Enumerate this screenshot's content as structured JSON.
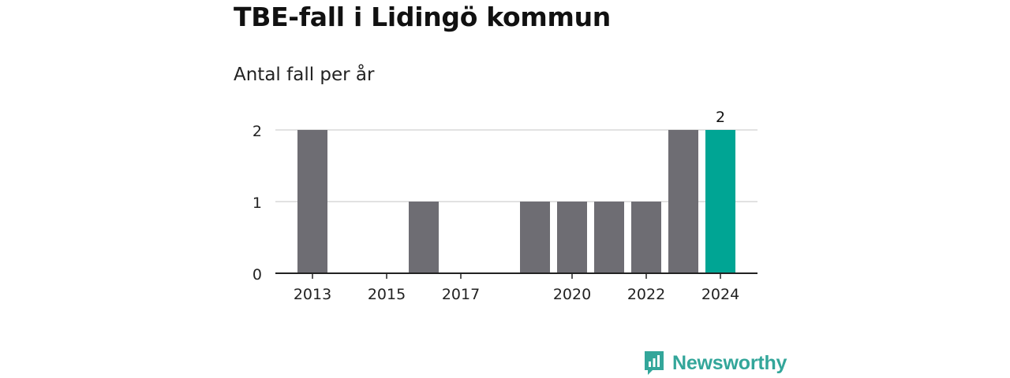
{
  "header": {
    "title": "TBE-fall i Lidingö kommun",
    "subtitle": "Antal fall per år"
  },
  "brand": {
    "name": "Newsworthy",
    "icon": "newsworthy-logo-icon",
    "color": "#33a69a"
  },
  "chart_data": {
    "type": "bar",
    "title": "TBE-fall i Lidingö kommun",
    "subtitle": "Antal fall per år",
    "xlabel": "",
    "ylabel": "",
    "categories": [
      "2013",
      "2014",
      "2015",
      "2016",
      "2017",
      "2018",
      "2019",
      "2020",
      "2021",
      "2022",
      "2023",
      "2024"
    ],
    "values": [
      2,
      0,
      0,
      1,
      0,
      0,
      1,
      1,
      1,
      1,
      2,
      2
    ],
    "x_tick_labels": [
      "2013",
      "2015",
      "2017",
      "2020",
      "2022",
      "2024"
    ],
    "y_ticks": [
      0,
      1,
      2
    ],
    "ylim": [
      0,
      2
    ],
    "grid": true,
    "highlight_category": "2024",
    "data_labels": [
      {
        "category": "2024",
        "text": "2"
      }
    ],
    "colors": {
      "bar": "#6e6d73",
      "highlight": "#00a594",
      "grid": "#d9d9d9",
      "axis": "#222222"
    }
  }
}
